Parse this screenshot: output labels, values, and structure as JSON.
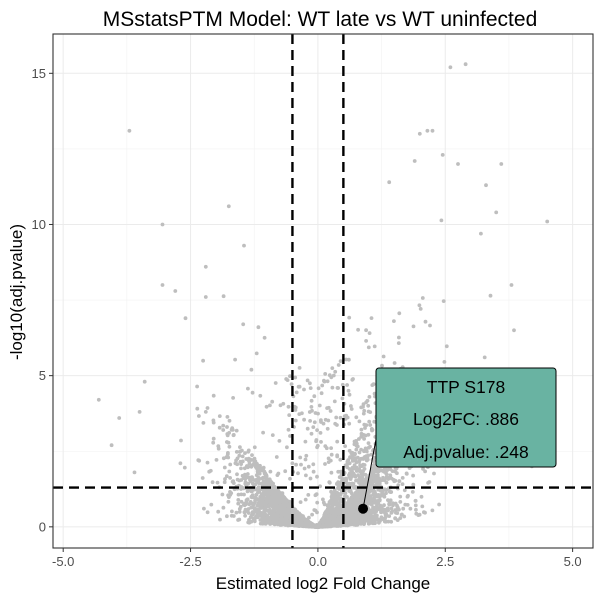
{
  "chart_data": {
    "type": "scatter",
    "title": "MSstatsPTM Model: WT late vs WT uninfected",
    "xlabel": "Estimated log2 Fold Change",
    "ylabel": "-log10(adj.pvalue)",
    "xlim": [
      -5.2,
      5.4
    ],
    "ylim": [
      -0.7,
      16.3
    ],
    "x_ticks": [
      -5.0,
      -2.5,
      0.0,
      2.5,
      5.0
    ],
    "x_tick_labels": [
      "-5.0",
      "-2.5",
      "0.0",
      "2.5",
      "5.0"
    ],
    "y_ticks": [
      0,
      5,
      10,
      15
    ],
    "y_tick_labels": [
      "0",
      "5",
      "10",
      "15"
    ],
    "grid": true,
    "point_color": "#bebebe",
    "thresholds": {
      "log2fc": [
        -0.5,
        0.5
      ],
      "neg_log10_pvalue": 1.3
    },
    "outlier_points": [
      [
        -4.3,
        4.2
      ],
      [
        -3.7,
        13.1
      ],
      [
        -1.45,
        9.3
      ],
      [
        -1.75,
        10.6
      ],
      [
        -2.8,
        7.8
      ],
      [
        2.6,
        15.2
      ],
      [
        2.9,
        15.3
      ],
      [
        2.15,
        13.1
      ],
      [
        2.25,
        13.1
      ],
      [
        4.5,
        10.1
      ],
      [
        3.5,
        10.4
      ],
      [
        -3.6,
        1.8
      ],
      [
        -2.2,
        7.6
      ],
      [
        3.8,
        8.0
      ],
      [
        -3.05,
        8.0
      ],
      [
        -2.2,
        3.8
      ],
      [
        -3.5,
        3.8
      ],
      [
        -3.4,
        4.8
      ],
      [
        -3.9,
        3.6
      ],
      [
        2.0,
        13.0
      ],
      [
        3.6,
        12.0
      ],
      [
        -2.6,
        6.9
      ],
      [
        4.3,
        3.0
      ],
      [
        4.2,
        2.0
      ],
      [
        -3.05,
        10.0
      ],
      [
        2.45,
        12.3
      ],
      [
        1.9,
        12.1
      ],
      [
        3.3,
        11.3
      ],
      [
        1.4,
        11.4
      ],
      [
        -4.05,
        2.7
      ],
      [
        -2.2,
        8.6
      ],
      [
        2.75,
        12.0
      ],
      [
        3.2,
        9.7
      ],
      [
        3.85,
        6.5
      ],
      [
        -2.7,
        2.1
      ]
    ],
    "highlight_point": {
      "label": "TTP S178",
      "x": 0.886,
      "y": 0.6
    },
    "annotation": {
      "lines": [
        "TTP S178",
        "Log2FC: .886",
        "Adj.pvalue: .248"
      ],
      "fill": "#69b3a2"
    }
  }
}
